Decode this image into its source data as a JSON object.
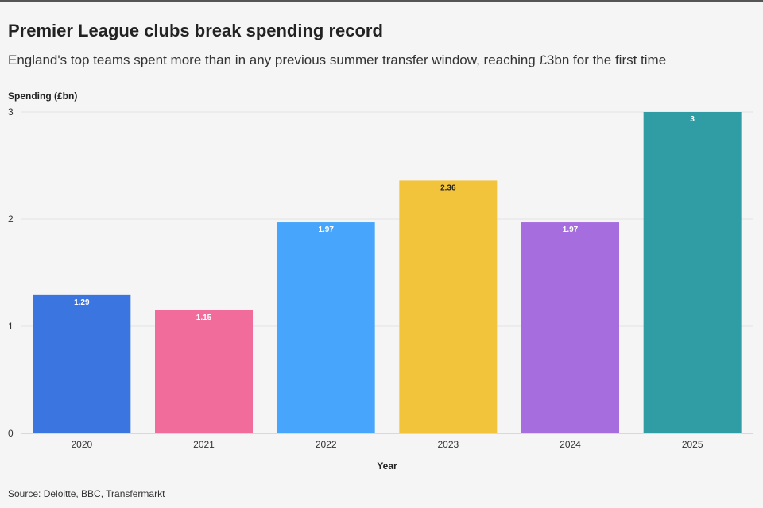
{
  "header": {
    "title": "Premier League clubs break spending record",
    "subtitle": "England's top teams spent more than in any previous summer transfer window, reaching £3bn for the first time"
  },
  "footer": {
    "source": "Source: Deloitte, BBC, Transfermarkt"
  },
  "chart_data": {
    "type": "bar",
    "title": "Premier League clubs break spending record",
    "xlabel": "Year",
    "ylabel": "Spending (£bn)",
    "categories": [
      "2020",
      "2021",
      "2022",
      "2023",
      "2024",
      "2025"
    ],
    "values": [
      1.29,
      1.15,
      1.97,
      2.36,
      1.97,
      3
    ],
    "data_labels": [
      "1.29",
      "1.15",
      "1.97",
      "2.36",
      "1.97",
      "3"
    ],
    "colors": [
      "#3b75e0",
      "#f26c9b",
      "#47a6fb",
      "#f2c43c",
      "#a66ddf",
      "#309da5"
    ],
    "label_colors": [
      "#ffffff",
      "#ffffff",
      "#ffffff",
      "#222222",
      "#ffffff",
      "#ffffff"
    ],
    "ylim": [
      0,
      3
    ],
    "yticks": [
      0,
      1,
      2,
      3
    ],
    "ytick_labels": [
      "0",
      "1",
      "2",
      "3"
    ],
    "grid": true,
    "legend": "none"
  }
}
